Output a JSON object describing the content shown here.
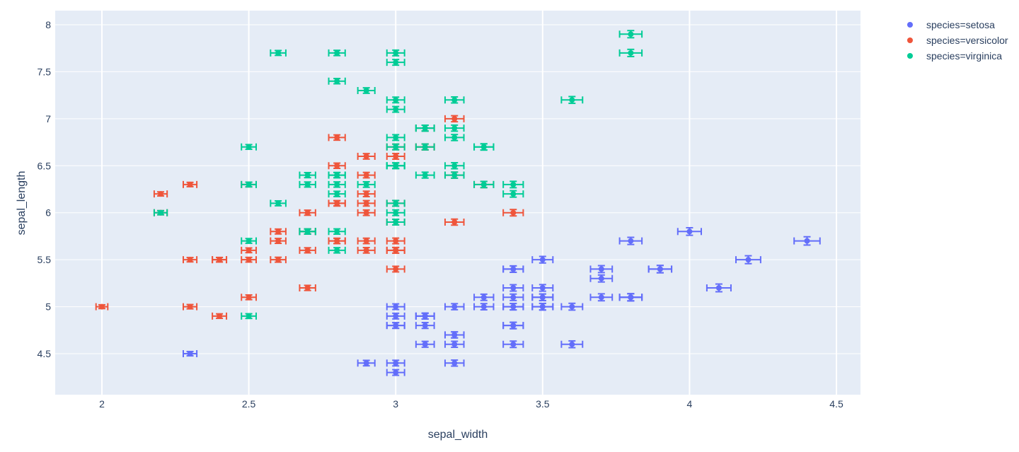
{
  "chart_data": {
    "type": "scatter",
    "xlabel": "sepal_width",
    "ylabel": "sepal_length",
    "xlim": [
      1.84,
      4.56
    ],
    "ylim": [
      4.2,
      8.15
    ],
    "xticks": [
      "2",
      "2.5",
      "3",
      "3.5",
      "4",
      "4.5"
    ],
    "yticks": [
      "4.5",
      "5",
      "5.5",
      "6",
      "6.5",
      "7",
      "7.5",
      "8"
    ],
    "grid": true,
    "legend_position": "top-right",
    "error": "error_x and error_y = sepal_width/100",
    "series": [
      {
        "name": "species=setosa",
        "color": "#636efa",
        "points": [
          [
            3.5,
            5.1
          ],
          [
            3.0,
            4.9
          ],
          [
            3.2,
            4.7
          ],
          [
            3.1,
            4.6
          ],
          [
            3.6,
            5.0
          ],
          [
            3.9,
            5.4
          ],
          [
            3.4,
            4.6
          ],
          [
            3.4,
            5.0
          ],
          [
            2.9,
            4.4
          ],
          [
            3.1,
            4.9
          ],
          [
            3.7,
            5.4
          ],
          [
            3.4,
            4.8
          ],
          [
            3.0,
            4.8
          ],
          [
            3.0,
            4.3
          ],
          [
            4.0,
            5.8
          ],
          [
            4.4,
            5.7
          ],
          [
            3.9,
            5.4
          ],
          [
            3.5,
            5.1
          ],
          [
            3.8,
            5.7
          ],
          [
            3.8,
            5.1
          ],
          [
            3.4,
            5.4
          ],
          [
            3.7,
            5.1
          ],
          [
            3.6,
            4.6
          ],
          [
            3.3,
            5.1
          ],
          [
            3.4,
            4.8
          ],
          [
            3.0,
            5.0
          ],
          [
            3.4,
            5.0
          ],
          [
            3.5,
            5.2
          ],
          [
            3.4,
            5.2
          ],
          [
            3.2,
            4.7
          ],
          [
            3.1,
            4.8
          ],
          [
            3.4,
            5.4
          ],
          [
            4.1,
            5.2
          ],
          [
            4.2,
            5.5
          ],
          [
            3.1,
            4.9
          ],
          [
            3.2,
            5.0
          ],
          [
            3.5,
            5.5
          ],
          [
            3.1,
            4.9
          ],
          [
            3.0,
            4.4
          ],
          [
            3.4,
            5.1
          ],
          [
            3.5,
            5.0
          ],
          [
            2.3,
            4.5
          ],
          [
            3.2,
            4.4
          ],
          [
            3.5,
            5.0
          ],
          [
            3.8,
            5.1
          ],
          [
            3.0,
            4.8
          ],
          [
            3.8,
            5.1
          ],
          [
            3.2,
            4.6
          ],
          [
            3.7,
            5.3
          ],
          [
            3.3,
            5.0
          ]
        ]
      },
      {
        "name": "species=versicolor",
        "color": "#EF553B",
        "points": [
          [
            3.2,
            7.0
          ],
          [
            3.2,
            6.4
          ],
          [
            3.1,
            6.9
          ],
          [
            2.3,
            5.5
          ],
          [
            2.8,
            6.5
          ],
          [
            2.8,
            5.7
          ],
          [
            3.3,
            6.3
          ],
          [
            2.4,
            4.9
          ],
          [
            2.9,
            6.6
          ],
          [
            2.7,
            5.2
          ],
          [
            2.0,
            5.0
          ],
          [
            3.0,
            5.9
          ],
          [
            2.2,
            6.0
          ],
          [
            2.9,
            6.1
          ],
          [
            2.9,
            5.6
          ],
          [
            3.1,
            6.7
          ],
          [
            3.0,
            5.6
          ],
          [
            2.7,
            5.8
          ],
          [
            2.2,
            6.2
          ],
          [
            2.5,
            5.6
          ],
          [
            3.2,
            5.9
          ],
          [
            2.8,
            6.1
          ],
          [
            2.5,
            6.3
          ],
          [
            2.8,
            6.1
          ],
          [
            2.9,
            6.4
          ],
          [
            3.0,
            6.6
          ],
          [
            2.8,
            6.8
          ],
          [
            3.0,
            6.7
          ],
          [
            2.9,
            6.0
          ],
          [
            2.6,
            5.7
          ],
          [
            2.4,
            5.5
          ],
          [
            2.4,
            5.5
          ],
          [
            2.7,
            5.8
          ],
          [
            2.7,
            6.0
          ],
          [
            3.0,
            5.4
          ],
          [
            3.4,
            6.0
          ],
          [
            3.1,
            6.7
          ],
          [
            2.3,
            6.3
          ],
          [
            3.0,
            5.6
          ],
          [
            2.5,
            5.5
          ],
          [
            2.6,
            5.5
          ],
          [
            3.0,
            6.1
          ],
          [
            2.6,
            5.8
          ],
          [
            2.3,
            5.0
          ],
          [
            2.7,
            5.6
          ],
          [
            3.0,
            5.7
          ],
          [
            2.9,
            5.7
          ],
          [
            2.9,
            6.2
          ],
          [
            2.5,
            5.1
          ],
          [
            2.8,
            5.7
          ]
        ]
      },
      {
        "name": "species=virginica",
        "color": "#00cc96",
        "points": [
          [
            3.3,
            6.3
          ],
          [
            2.7,
            5.8
          ],
          [
            3.0,
            7.1
          ],
          [
            2.9,
            6.3
          ],
          [
            3.0,
            6.5
          ],
          [
            3.0,
            7.6
          ],
          [
            2.5,
            4.9
          ],
          [
            2.9,
            7.3
          ],
          [
            2.5,
            6.7
          ],
          [
            3.6,
            7.2
          ],
          [
            3.2,
            6.5
          ],
          [
            2.7,
            6.4
          ],
          [
            3.0,
            6.8
          ],
          [
            2.5,
            5.7
          ],
          [
            2.8,
            5.8
          ],
          [
            3.2,
            6.4
          ],
          [
            3.0,
            6.5
          ],
          [
            3.8,
            7.7
          ],
          [
            2.6,
            7.7
          ],
          [
            2.2,
            6.0
          ],
          [
            3.2,
            6.9
          ],
          [
            2.8,
            5.6
          ],
          [
            2.8,
            7.7
          ],
          [
            2.7,
            6.3
          ],
          [
            3.3,
            6.7
          ],
          [
            3.2,
            7.2
          ],
          [
            2.8,
            6.2
          ],
          [
            3.0,
            6.1
          ],
          [
            2.8,
            6.4
          ],
          [
            3.0,
            7.2
          ],
          [
            2.8,
            7.4
          ],
          [
            3.8,
            7.9
          ],
          [
            2.8,
            6.4
          ],
          [
            2.8,
            6.3
          ],
          [
            2.6,
            6.1
          ],
          [
            3.0,
            7.7
          ],
          [
            3.4,
            6.3
          ],
          [
            3.1,
            6.4
          ],
          [
            3.0,
            6.0
          ],
          [
            3.1,
            6.9
          ],
          [
            3.1,
            6.7
          ],
          [
            3.1,
            6.9
          ],
          [
            2.7,
            5.8
          ],
          [
            3.2,
            6.8
          ],
          [
            3.3,
            6.7
          ],
          [
            3.0,
            6.7
          ],
          [
            2.5,
            6.3
          ],
          [
            3.0,
            6.5
          ],
          [
            3.4,
            6.2
          ],
          [
            3.0,
            5.9
          ]
        ]
      }
    ]
  }
}
